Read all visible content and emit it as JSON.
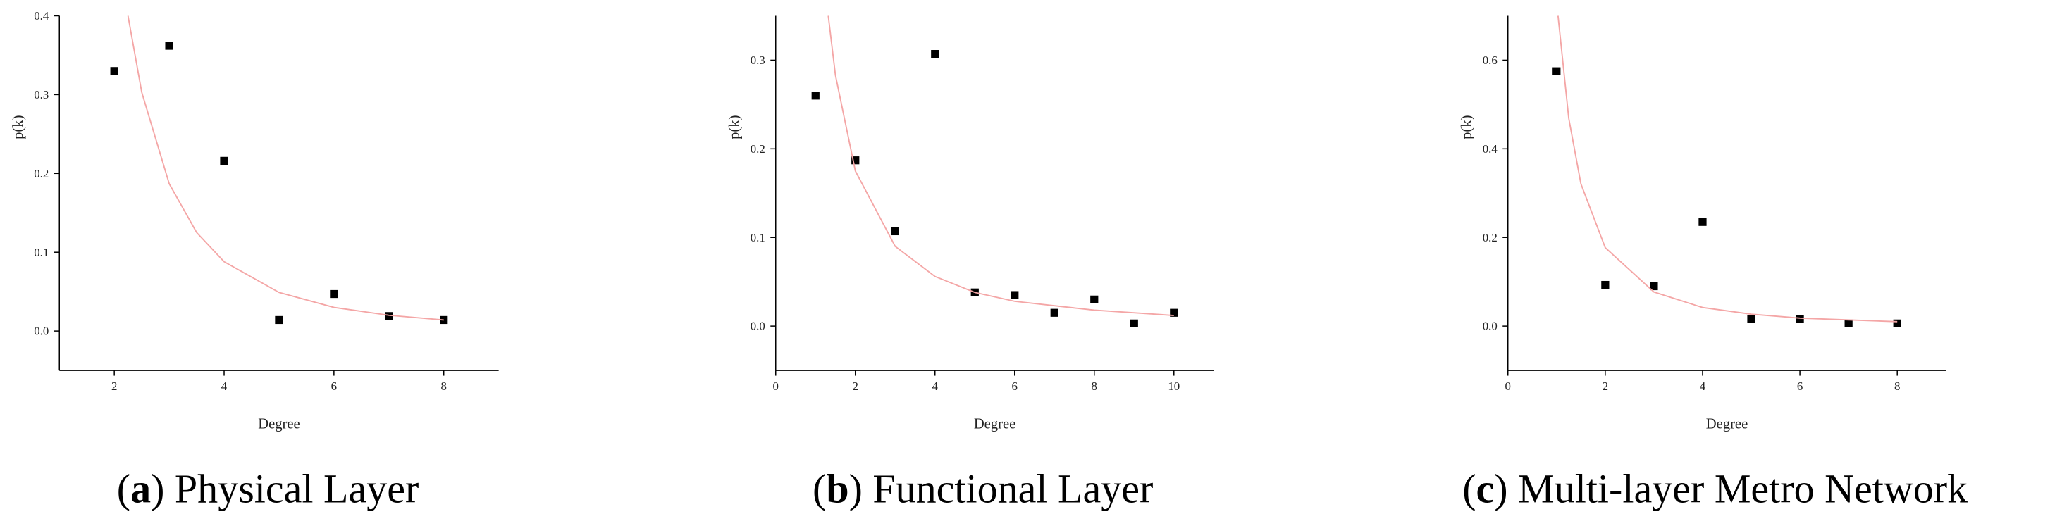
{
  "chart_data": [
    {
      "type": "scatter",
      "caption": [
        "(",
        "a",
        ") Physical Layer"
      ],
      "xlabel": "Degree",
      "ylabel": "p(k)",
      "xlim": [
        1,
        9
      ],
      "xticks": [
        2,
        4,
        6,
        8
      ],
      "ylim": [
        -0.05,
        0.4
      ],
      "yticks": [
        {
          "value": 0,
          "label": "0.0"
        },
        0.1,
        0.2,
        0.3,
        0.4
      ],
      "series": [
        {
          "marker": "square",
          "color": "#000000",
          "x": [
            2,
            3,
            4,
            5,
            6,
            7,
            8
          ],
          "values": [
            0.33,
            0.362,
            0.216,
            0.014,
            0.047,
            0.019,
            0.014
          ]
        },
        {
          "marker": "line",
          "color": "#f4a6a6",
          "x": [
            2.25,
            2.5,
            3,
            3.5,
            4,
            5,
            6,
            7,
            8
          ],
          "values": [
            0.4,
            0.303,
            0.187,
            0.125,
            0.088,
            0.049,
            0.03,
            0.02,
            0.014
          ]
        }
      ]
    },
    {
      "type": "scatter",
      "caption": [
        "(",
        "b",
        ") Functional Layer"
      ],
      "xlabel": "Degree",
      "ylabel": "p(k)",
      "xlim": [
        0,
        11
      ],
      "xticks": [
        0,
        2,
        4,
        6,
        8,
        10
      ],
      "ylim": [
        -0.05,
        0.35
      ],
      "yticks": [
        {
          "value": 0,
          "label": "0.0"
        },
        0.1,
        0.2,
        0.3
      ],
      "series": [
        {
          "marker": "square",
          "color": "#000000",
          "x": [
            1,
            2,
            3,
            4,
            5,
            6,
            7,
            8,
            9,
            10
          ],
          "values": [
            0.26,
            0.187,
            0.107,
            0.307,
            0.038,
            0.035,
            0.015,
            0.03,
            0.003,
            0.015
          ]
        },
        {
          "marker": "line",
          "color": "#f4a6a6",
          "x": [
            1.32,
            1.5,
            2,
            3,
            4,
            5,
            6,
            8,
            10
          ],
          "values": [
            0.35,
            0.283,
            0.175,
            0.09,
            0.056,
            0.038,
            0.028,
            0.018,
            0.012
          ]
        }
      ]
    },
    {
      "type": "scatter",
      "caption": [
        "(",
        "c",
        ") Multi-layer Metro Network"
      ],
      "xlabel": "Degree",
      "ylabel": "p(k)",
      "xlim": [
        0,
        9
      ],
      "xticks": [
        0,
        2,
        4,
        6,
        8
      ],
      "ylim": [
        -0.1,
        0.7
      ],
      "yticks": [
        {
          "value": 0,
          "label": "0.0"
        },
        0.2,
        0.4,
        0.6
      ],
      "series": [
        {
          "marker": "square",
          "color": "#000000",
          "x": [
            1,
            2,
            3,
            4,
            5,
            6,
            7,
            8
          ],
          "values": [
            0.575,
            0.093,
            0.09,
            0.235,
            0.016,
            0.016,
            0.006,
            0.006
          ]
        },
        {
          "marker": "line",
          "color": "#f4a6a6",
          "x": [
            1.03,
            1.25,
            1.5,
            2,
            3,
            4,
            5,
            6,
            8
          ],
          "values": [
            0.7,
            0.469,
            0.321,
            0.177,
            0.077,
            0.042,
            0.027,
            0.018,
            0.01
          ]
        }
      ]
    }
  ]
}
